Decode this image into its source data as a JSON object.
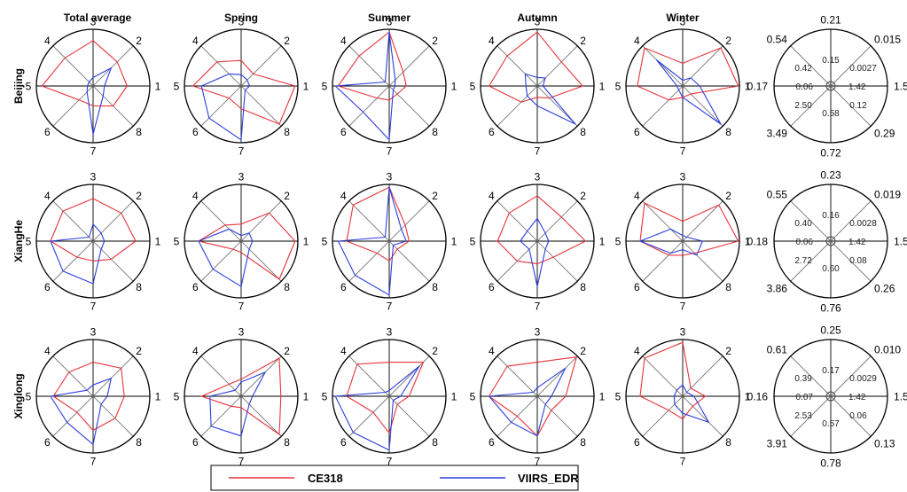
{
  "chart_data": {
    "type": "radar",
    "columns": [
      "Total average",
      "Spring",
      "Summer",
      "Autumn",
      "Winter"
    ],
    "rows": [
      "Beijing",
      "XiangHe",
      "Xinglong"
    ],
    "axes": [
      "1",
      "2",
      "3",
      "4",
      "5",
      "6",
      "7",
      "8"
    ],
    "series_styles": [
      {
        "name": "CE318",
        "color": "#e8333a"
      },
      {
        "name": "VIIRS_EDR",
        "color": "#2b3de0"
      }
    ],
    "panels": [
      {
        "row": "Beijing",
        "column": "Total average",
        "series": [
          {
            "name": "CE318",
            "values": [
              0.6,
              0.6,
              0.8,
              0.7,
              0.9,
              0.35,
              0.35,
              0.5
            ]
          },
          {
            "name": "VIIRS_EDR",
            "values": [
              0.2,
              0.45,
              0.15,
              0.1,
              0.1,
              0.15,
              0.85,
              0.25
            ]
          }
        ]
      },
      {
        "row": "Beijing",
        "column": "Spring",
        "series": [
          {
            "name": "CE318",
            "values": [
              0.95,
              0.3,
              0.45,
              0.6,
              0.85,
              0.3,
              0.4,
              0.95
            ]
          },
          {
            "name": "VIIRS_EDR",
            "values": [
              0.15,
              0.15,
              0.2,
              0.3,
              0.7,
              0.8,
              0.95,
              0.1
            ]
          }
        ]
      },
      {
        "row": "Beijing",
        "column": "Summer",
        "series": [
          {
            "name": "CE318",
            "values": [
              0.3,
              0.35,
              0.95,
              0.75,
              0.9,
              0.3,
              0.25,
              0.2
            ]
          },
          {
            "name": "VIIRS_EDR",
            "values": [
              0.1,
              0.15,
              0.95,
              0.1,
              0.95,
              0.65,
              0.95,
              0.1
            ]
          }
        ]
      },
      {
        "row": "Beijing",
        "column": "Autumn",
        "series": [
          {
            "name": "CE318",
            "values": [
              0.8,
              0.6,
              0.95,
              0.75,
              0.85,
              0.4,
              0.2,
              0.3
            ]
          },
          {
            "name": "VIIRS_EDR",
            "values": [
              0.1,
              0.2,
              0.15,
              0.3,
              0.2,
              0.25,
              0.35,
              0.95
            ]
          }
        ]
      },
      {
        "row": "Beijing",
        "column": "Winter",
        "series": [
          {
            "name": "CE318",
            "values": [
              0.98,
              0.95,
              0.4,
              0.95,
              0.8,
              0.35,
              0.2,
              0.2
            ]
          },
          {
            "name": "VIIRS_EDR",
            "values": [
              0.3,
              0.2,
              0.1,
              0.65,
              0.1,
              0.1,
              0.2,
              0.95
            ]
          }
        ]
      },
      {
        "row": "XiangHe",
        "column": "Total average",
        "series": [
          {
            "name": "CE318",
            "values": [
              0.75,
              0.7,
              0.75,
              0.75,
              0.75,
              0.4,
              0.35,
              0.45
            ]
          },
          {
            "name": "VIIRS_EDR",
            "values": [
              0.2,
              0.2,
              0.3,
              0.1,
              0.75,
              0.75,
              0.75,
              0.2
            ]
          }
        ]
      },
      {
        "row": "XiangHe",
        "column": "Spring",
        "series": [
          {
            "name": "CE318",
            "values": [
              0.95,
              0.7,
              0.3,
              0.4,
              0.75,
              0.2,
              0.2,
              0.95
            ]
          },
          {
            "name": "VIIRS_EDR",
            "values": [
              0.2,
              0.2,
              0.1,
              0.3,
              0.75,
              0.7,
              0.8,
              0.2
            ]
          }
        ]
      },
      {
        "row": "XiangHe",
        "column": "Summer",
        "series": [
          {
            "name": "CE318",
            "values": [
              0.35,
              0.4,
              0.95,
              0.9,
              0.75,
              0.3,
              0.35,
              0.2
            ]
          },
          {
            "name": "VIIRS_EDR",
            "values": [
              0.3,
              0.3,
              0.95,
              0.1,
              0.9,
              0.85,
              0.95,
              0.1
            ]
          }
        ]
      },
      {
        "row": "XiangHe",
        "column": "Autumn",
        "series": [
          {
            "name": "CE318",
            "values": [
              0.85,
              0.6,
              0.8,
              0.7,
              0.7,
              0.5,
              0.4,
              0.4
            ]
          },
          {
            "name": "VIIRS_EDR",
            "values": [
              0.2,
              0.2,
              0.4,
              0.25,
              0.3,
              0.2,
              0.8,
              0.2
            ]
          }
        ]
      },
      {
        "row": "XiangHe",
        "column": "Winter",
        "series": [
          {
            "name": "CE318",
            "values": [
              0.98,
              0.9,
              0.35,
              0.95,
              0.75,
              0.35,
              0.25,
              0.3
            ]
          },
          {
            "name": "VIIRS_EDR",
            "values": [
              0.35,
              0.1,
              0.1,
              0.3,
              0.75,
              0.3,
              0.15,
              0.35
            ]
          }
        ]
      },
      {
        "row": "Xinglong",
        "column": "Total average",
        "series": [
          {
            "name": "CE318",
            "values": [
              0.55,
              0.7,
              0.6,
              0.6,
              0.7,
              0.4,
              0.6,
              0.55
            ]
          },
          {
            "name": "VIIRS_EDR",
            "values": [
              0.25,
              0.45,
              0.2,
              0.15,
              0.75,
              0.65,
              0.85,
              0.2
            ]
          }
        ]
      },
      {
        "row": "Xinglong",
        "column": "Spring",
        "series": [
          {
            "name": "CE318",
            "values": [
              0.7,
              0.95,
              0.3,
              0.3,
              0.7,
              0.25,
              0.2,
              0.95
            ]
          },
          {
            "name": "VIIRS_EDR",
            "values": [
              0.2,
              0.6,
              0.25,
              0.15,
              0.55,
              0.75,
              0.7,
              0.2
            ]
          }
        ]
      },
      {
        "row": "Xinglong",
        "column": "Summer",
        "series": [
          {
            "name": "CE318",
            "values": [
              0.35,
              0.85,
              0.6,
              0.8,
              0.75,
              0.4,
              0.65,
              0.2
            ]
          },
          {
            "name": "VIIRS_EDR",
            "values": [
              0.2,
              0.75,
              0.1,
              0.1,
              0.95,
              0.9,
              0.95,
              0.1
            ]
          }
        ]
      },
      {
        "row": "Xinglong",
        "column": "Autumn",
        "series": [
          {
            "name": "CE318",
            "values": [
              0.5,
              0.98,
              0.6,
              0.75,
              0.85,
              0.5,
              0.7,
              0.35
            ]
          },
          {
            "name": "VIIRS_EDR",
            "values": [
              0.25,
              0.7,
              0.15,
              0.1,
              0.85,
              0.65,
              0.7,
              0.2
            ]
          }
        ]
      },
      {
        "row": "Xinglong",
        "column": "Winter",
        "series": [
          {
            "name": "CE318",
            "values": [
              0.4,
              0.2,
              0.95,
              0.95,
              0.75,
              0.35,
              0.4,
              0.25
            ]
          },
          {
            "name": "VIIRS_EDR",
            "values": [
              0.2,
              0.1,
              0.2,
              0.15,
              0.15,
              0.2,
              0.3,
              0.65
            ]
          }
        ]
      }
    ],
    "scale_panels": [
      {
        "row": "Beijing",
        "outer": [
          "1.53",
          "0.015",
          "0.21",
          "0.54",
          "0.17",
          "3.49",
          "0.72",
          "0.29"
        ],
        "inner": [
          "1.42",
          "0.0027",
          "0.15",
          "0.42",
          "0.06",
          "2.50",
          "0.58",
          "0.12"
        ]
      },
      {
        "row": "XiangHe",
        "outer": [
          "1.52",
          "0.019",
          "0.23",
          "0.55",
          "0.18",
          "3.86",
          "0.76",
          "0.26"
        ],
        "inner": [
          "1.42",
          "0.0028",
          "0.16",
          "0.40",
          "0.06",
          "2.72",
          "0.60",
          "0.08"
        ]
      },
      {
        "row": "Xinglong",
        "outer": [
          "1.51",
          "0.010",
          "0.25",
          "0.61",
          "0.16",
          "3.91",
          "0.78",
          "0.13"
        ],
        "inner": [
          "1.42",
          "0.0029",
          "0.17",
          "0.39",
          "0.07",
          "2.53",
          "0.57",
          "0.06"
        ]
      }
    ]
  }
}
